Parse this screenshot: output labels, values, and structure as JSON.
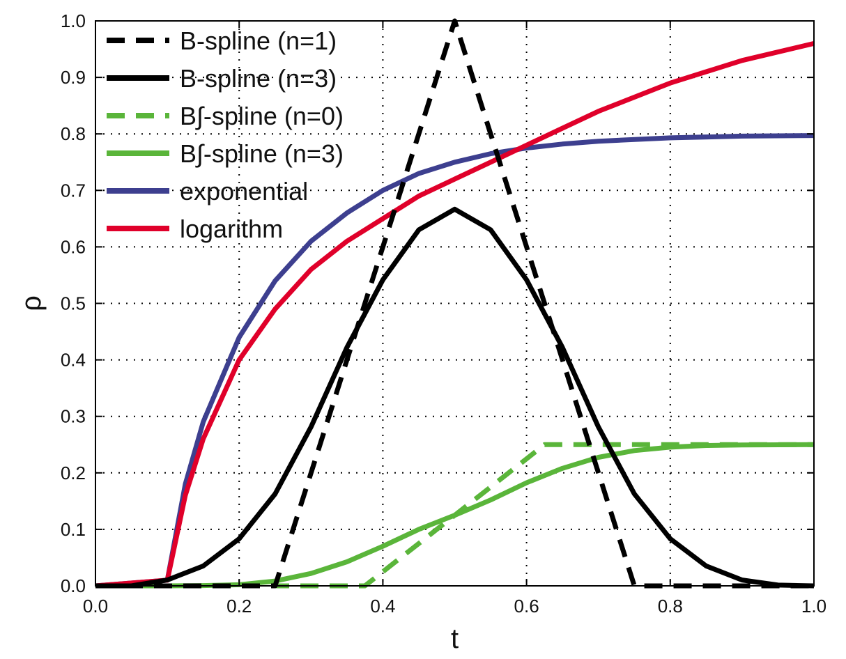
{
  "chart_data": {
    "type": "line",
    "title": "",
    "xlabel": "t",
    "ylabel": "ρ",
    "xlim": [
      0.0,
      1.0
    ],
    "ylim": [
      0.0,
      1.0
    ],
    "grid": true,
    "grid_style": "dotted",
    "legend_position": "top-left",
    "xticks": [
      "0.0",
      "0.2",
      "0.4",
      "0.6",
      "0.8",
      "1.0"
    ],
    "yticks": [
      "0.0",
      "0.1",
      "0.2",
      "0.3",
      "0.4",
      "0.5",
      "0.6",
      "0.7",
      "0.8",
      "0.9",
      "1.0"
    ],
    "series": [
      {
        "name": "B-spline (n=1)",
        "color": "#000000",
        "dash": "dashed",
        "x": [
          0.0,
          0.25,
          0.5,
          0.75,
          1.0
        ],
        "y": [
          0.0,
          0.0,
          1.0,
          0.0,
          0.0
        ]
      },
      {
        "name": "B-spline (n=3)",
        "color": "#000000",
        "dash": "solid",
        "x": [
          0.0,
          0.05,
          0.1,
          0.15,
          0.2,
          0.25,
          0.3,
          0.35,
          0.4,
          0.45,
          0.5,
          0.55,
          0.6,
          0.65,
          0.7,
          0.75,
          0.8,
          0.85,
          0.9,
          0.95,
          1.0
        ],
        "y": [
          0.0,
          0.0,
          0.0104,
          0.0352,
          0.0833,
          0.1628,
          0.2813,
          0.4219,
          0.5417,
          0.6302,
          0.6667,
          0.6302,
          0.5417,
          0.4219,
          0.2813,
          0.1628,
          0.0833,
          0.0352,
          0.0104,
          0.0013,
          0.0
        ]
      },
      {
        "name": "B∫-spline (n=0)",
        "color": "#5ab53a",
        "dash": "dashed",
        "x": [
          0.0,
          0.375,
          0.625,
          1.0
        ],
        "y": [
          0.0,
          0.0,
          0.25,
          0.25
        ]
      },
      {
        "name": "B∫-spline (n=3)",
        "color": "#5ab53a",
        "dash": "solid",
        "x": [
          0.0,
          0.1,
          0.15,
          0.2,
          0.25,
          0.3,
          0.35,
          0.4,
          0.45,
          0.5,
          0.55,
          0.6,
          0.65,
          0.7,
          0.75,
          0.8,
          0.85,
          0.9,
          1.0
        ],
        "y": [
          0.0,
          0.0,
          0.0005,
          0.002,
          0.0085,
          0.022,
          0.0425,
          0.07,
          0.1,
          0.125,
          0.152,
          0.1825,
          0.208,
          0.2275,
          0.2395,
          0.2455,
          0.2485,
          0.2495,
          0.25
        ]
      },
      {
        "name": "exponential",
        "color": "#3d3f8f",
        "dash": "solid",
        "x": [
          0.0,
          0.1,
          0.125,
          0.15,
          0.2,
          0.25,
          0.3,
          0.35,
          0.4,
          0.45,
          0.5,
          0.55,
          0.6,
          0.65,
          0.7,
          0.8,
          0.9,
          1.0
        ],
        "y": [
          0.0,
          0.01,
          0.18,
          0.29,
          0.44,
          0.54,
          0.61,
          0.66,
          0.7,
          0.73,
          0.75,
          0.765,
          0.775,
          0.782,
          0.787,
          0.793,
          0.796,
          0.797
        ]
      },
      {
        "name": "logarithm",
        "color": "#e0002a",
        "dash": "solid",
        "x": [
          0.0,
          0.1,
          0.125,
          0.15,
          0.2,
          0.25,
          0.3,
          0.35,
          0.4,
          0.45,
          0.5,
          0.55,
          0.6,
          0.65,
          0.7,
          0.8,
          0.9,
          1.0
        ],
        "y": [
          0.0,
          0.01,
          0.16,
          0.26,
          0.4,
          0.49,
          0.56,
          0.61,
          0.65,
          0.69,
          0.72,
          0.75,
          0.78,
          0.81,
          0.84,
          0.89,
          0.93,
          0.96
        ]
      }
    ]
  }
}
